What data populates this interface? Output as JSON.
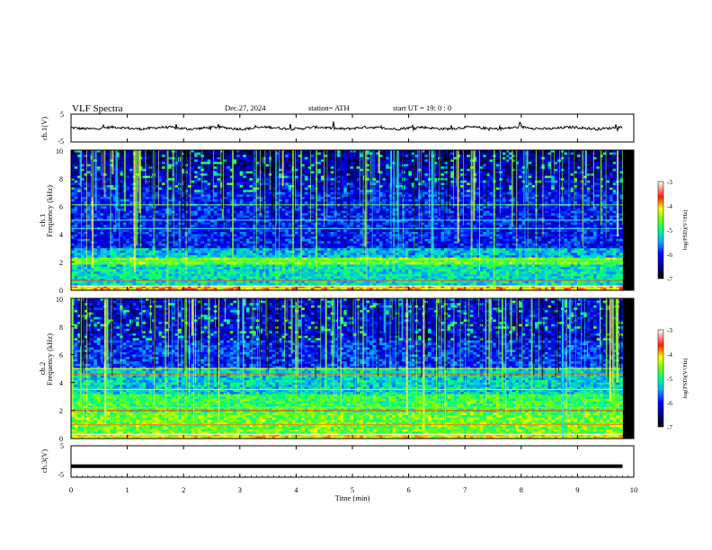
{
  "header": {
    "title": "VLF  Spectra",
    "date": "Dec.27, 2024",
    "station": "station= ATH",
    "start": "start  UT  =    19: 0   : 0"
  },
  "chart_data": [
    {
      "type": "line",
      "name": "ch1-waveform",
      "ylabel": "ch.1(V)",
      "ylim": [
        -5,
        5
      ],
      "yticks": [
        "5",
        "-5"
      ],
      "xlim": [
        0,
        10
      ],
      "baseline": 0.0,
      "description_values": "noisy trace around 0 V with spikes up to ~+1.5 V"
    },
    {
      "type": "heatmap",
      "name": "ch1-spectrogram",
      "ylabel": "ch.1\nFrequency  (kHz)",
      "ylim": [
        0,
        10
      ],
      "yticks": [
        "0",
        "2",
        "4",
        "6",
        "8",
        "10"
      ],
      "xlim": [
        0,
        10
      ],
      "colorbar": {
        "label": "log(PSD)(V²/Hz)",
        "ticks": [
          "-3",
          "-4",
          "-5",
          "-6",
          "-7"
        ],
        "range": [
          -7,
          -3
        ]
      }
    },
    {
      "type": "heatmap",
      "name": "ch2-spectrogram",
      "ylabel": "ch.2\nFrequency  (kHz)",
      "ylim": [
        0,
        10
      ],
      "yticks": [
        "0",
        "2",
        "4",
        "6",
        "8",
        "10"
      ],
      "xlim": [
        0,
        10
      ],
      "colorbar": {
        "label": "log(PSD)(V²/Hz)",
        "ticks": [
          "-3",
          "-4",
          "-5",
          "-6",
          "-7"
        ],
        "range": [
          -7,
          -3
        ]
      }
    },
    {
      "type": "line",
      "name": "ch3-waveform",
      "ylabel": "ch.3(V)",
      "ylim": [
        -5,
        5
      ],
      "yticks": [
        "5",
        "-5"
      ],
      "xlim": [
        0,
        10
      ],
      "baseline": -1.5
    }
  ],
  "xaxis": {
    "label": "Time  (min)",
    "ticks": [
      "0",
      "1",
      "2",
      "3",
      "4",
      "5",
      "6",
      "7",
      "8",
      "9",
      "10"
    ]
  },
  "colorbar_ch1": {
    "label": "log(PSD)(V²/Hz)",
    "t3": "-3",
    "t4": "-4",
    "t5": "-5",
    "t6": "-6",
    "t7": "-7"
  },
  "colorbar_ch2": {
    "label": "log(PSD)(V²/Hz)",
    "t3": "-3",
    "t4": "-4",
    "t5": "-5",
    "t6": "-6",
    "t7": "-7"
  }
}
